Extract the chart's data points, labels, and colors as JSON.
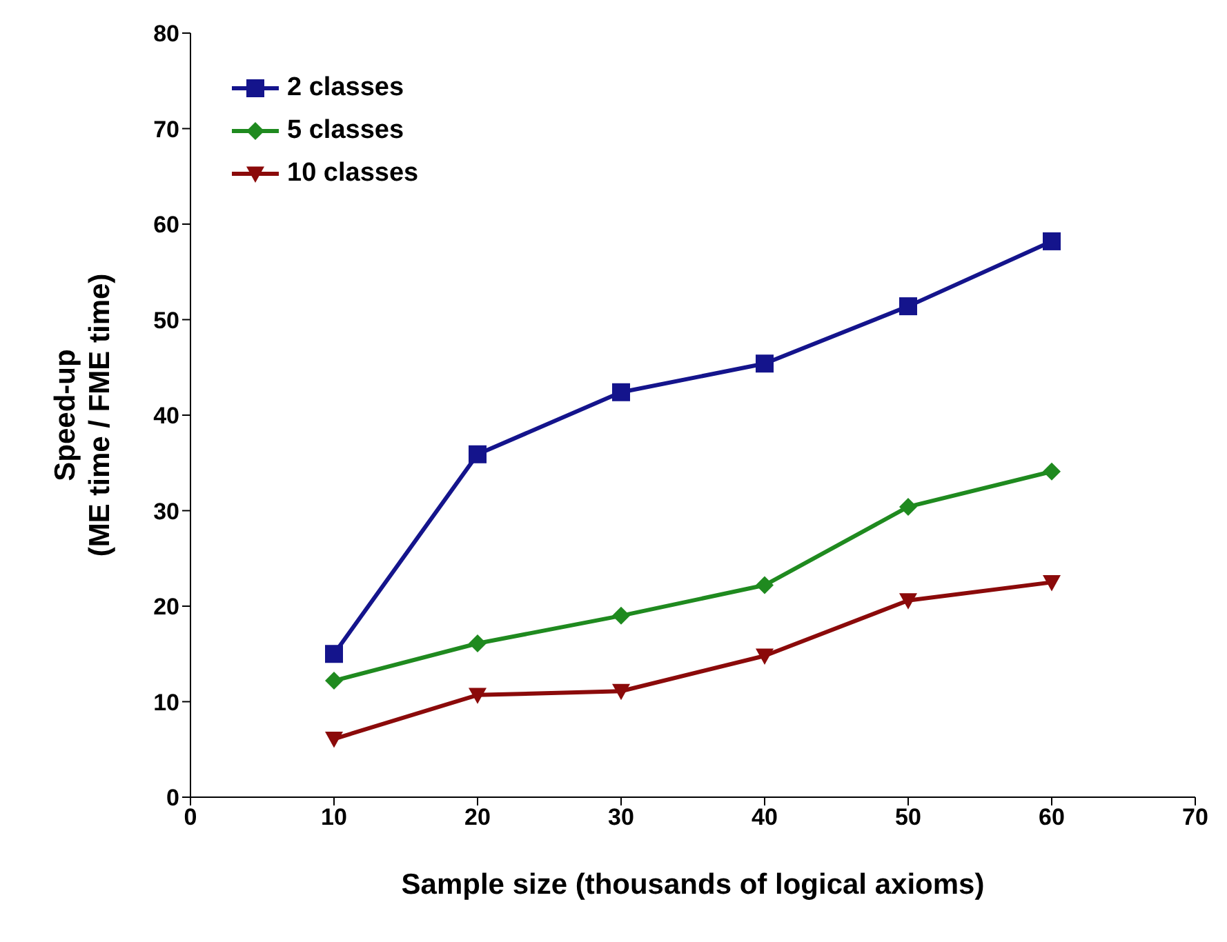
{
  "chart_data": {
    "type": "line",
    "xlabel": "Sample size (thousands of logical axioms)",
    "ylabel": "Speed-up\n(ME time / FME time)",
    "x": [
      10,
      20,
      30,
      40,
      50,
      60
    ],
    "series": [
      {
        "name": "2 classes",
        "color": "#14148c",
        "marker": "square",
        "values": [
          15.0,
          35.9,
          42.4,
          45.4,
          51.4,
          58.2
        ]
      },
      {
        "name": "5 classes",
        "color": "#1f8a1f",
        "marker": "diamond",
        "values": [
          12.2,
          16.1,
          19.0,
          22.2,
          30.4,
          34.1
        ]
      },
      {
        "name": "10 classes",
        "color": "#8b0a0a",
        "marker": "triangle",
        "values": [
          6.1,
          10.7,
          11.1,
          14.8,
          20.6,
          22.5
        ]
      }
    ],
    "xlim": [
      0,
      70
    ],
    "xticks": [
      0,
      10,
      20,
      30,
      40,
      50,
      60,
      70
    ],
    "ylim": [
      0,
      80
    ],
    "yticks": [
      0,
      10,
      20,
      30,
      40,
      50,
      60,
      70,
      80
    ],
    "grid": false,
    "legend": "top left",
    "line_style": "solid"
  }
}
